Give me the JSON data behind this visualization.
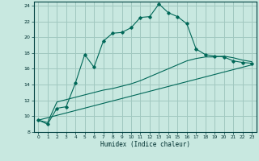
{
  "xlabel": "Humidex (Indice chaleur)",
  "bg_color": "#c8e8e0",
  "grid_color": "#a0c8c0",
  "line_color": "#006858",
  "xlim": [
    -0.5,
    23.5
  ],
  "ylim": [
    8,
    24.5
  ],
  "xticks": [
    0,
    1,
    2,
    3,
    4,
    5,
    6,
    7,
    8,
    9,
    10,
    11,
    12,
    13,
    14,
    15,
    16,
    17,
    18,
    19,
    20,
    21,
    22,
    23
  ],
  "yticks": [
    8,
    10,
    12,
    14,
    16,
    18,
    20,
    22,
    24
  ],
  "main_x": [
    0,
    1,
    2,
    3,
    4,
    5,
    6,
    7,
    8,
    9,
    10,
    11,
    12,
    13,
    14,
    15,
    16,
    17,
    18,
    19,
    20,
    21,
    22,
    23
  ],
  "main_y": [
    9.5,
    9.0,
    11.0,
    11.2,
    14.2,
    17.8,
    16.2,
    19.5,
    20.5,
    20.6,
    21.2,
    22.5,
    22.6,
    24.2,
    23.1,
    22.6,
    21.7,
    18.5,
    17.8,
    17.6,
    17.5,
    17.0,
    16.8,
    16.7
  ],
  "line2_x": [
    0,
    1,
    2,
    3,
    4,
    5,
    6,
    7,
    8,
    9,
    10,
    11,
    12,
    13,
    14,
    15,
    16,
    17,
    18,
    19,
    20,
    21,
    22,
    23
  ],
  "line2_y": [
    9.5,
    9.2,
    11.8,
    12.1,
    12.4,
    12.7,
    13.0,
    13.3,
    13.5,
    13.8,
    14.1,
    14.5,
    15.0,
    15.5,
    16.0,
    16.5,
    17.0,
    17.3,
    17.5,
    17.5,
    17.6,
    17.4,
    17.1,
    16.9
  ],
  "line3_x": [
    0,
    23
  ],
  "line3_y": [
    9.5,
    16.5
  ]
}
